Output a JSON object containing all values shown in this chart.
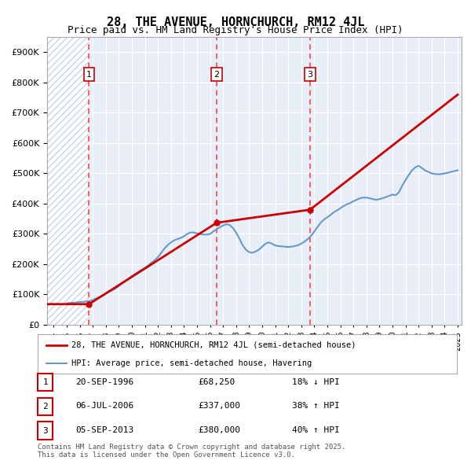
{
  "title": "28, THE AVENUE, HORNCHURCH, RM12 4JL",
  "subtitle": "Price paid vs. HM Land Registry's House Price Index (HPI)",
  "ylabel": "",
  "ylim": [
    0,
    950000
  ],
  "yticks": [
    0,
    100000,
    200000,
    300000,
    400000,
    500000,
    600000,
    700000,
    800000,
    900000
  ],
  "ytick_labels": [
    "£0",
    "£100K",
    "£200K",
    "£300K",
    "£400K",
    "£500K",
    "£600K",
    "£700K",
    "£800K",
    "£900K"
  ],
  "background_color": "#ffffff",
  "plot_bg_color": "#e8eef8",
  "grid_color": "#ffffff",
  "hatch_color": "#c8d4e8",
  "sale_color": "#cc0000",
  "hpi_color": "#6699cc",
  "vline_color": "#ff4444",
  "transactions": [
    {
      "date": 1996.72,
      "price": 68250,
      "label": "1"
    },
    {
      "date": 2006.51,
      "price": 337000,
      "label": "2"
    },
    {
      "date": 2013.67,
      "price": 380000,
      "label": "3"
    }
  ],
  "legend_sale_label": "28, THE AVENUE, HORNCHURCH, RM12 4JL (semi-detached house)",
  "legend_hpi_label": "HPI: Average price, semi-detached house, Havering",
  "table_rows": [
    {
      "num": "1",
      "date": "20-SEP-1996",
      "price": "£68,250",
      "hpi": "18% ↓ HPI"
    },
    {
      "num": "2",
      "date": "06-JUL-2006",
      "price": "£337,000",
      "hpi": "38% ↑ HPI"
    },
    {
      "num": "3",
      "date": "05-SEP-2013",
      "price": "£380,000",
      "hpi": "40% ↑ HPI"
    }
  ],
  "footer": "Contains HM Land Registry data © Crown copyright and database right 2025.\nThis data is licensed under the Open Government Licence v3.0.",
  "hpi_x": [
    1995.0,
    1995.25,
    1995.5,
    1995.75,
    1996.0,
    1996.25,
    1996.5,
    1996.75,
    1997.0,
    1997.25,
    1997.5,
    1997.75,
    1998.0,
    1998.25,
    1998.5,
    1998.75,
    1999.0,
    1999.25,
    1999.5,
    1999.75,
    2000.0,
    2000.25,
    2000.5,
    2000.75,
    2001.0,
    2001.25,
    2001.5,
    2001.75,
    2002.0,
    2002.25,
    2002.5,
    2002.75,
    2003.0,
    2003.25,
    2003.5,
    2003.75,
    2004.0,
    2004.25,
    2004.5,
    2004.75,
    2005.0,
    2005.25,
    2005.5,
    2005.75,
    2006.0,
    2006.25,
    2006.5,
    2006.75,
    2007.0,
    2007.25,
    2007.5,
    2007.75,
    2008.0,
    2008.25,
    2008.5,
    2008.75,
    2009.0,
    2009.25,
    2009.5,
    2009.75,
    2010.0,
    2010.25,
    2010.5,
    2010.75,
    2011.0,
    2011.25,
    2011.5,
    2011.75,
    2012.0,
    2012.25,
    2012.5,
    2012.75,
    2013.0,
    2013.25,
    2013.5,
    2013.75,
    2014.0,
    2014.25,
    2014.5,
    2014.75,
    2015.0,
    2015.25,
    2015.5,
    2015.75,
    2016.0,
    2016.25,
    2016.5,
    2016.75,
    2017.0,
    2017.25,
    2017.5,
    2017.75,
    2018.0,
    2018.25,
    2018.5,
    2018.75,
    2019.0,
    2019.25,
    2019.5,
    2019.75,
    2020.0,
    2020.25,
    2020.5,
    2020.75,
    2021.0,
    2021.25,
    2021.5,
    2021.75,
    2022.0,
    2022.25,
    2022.5,
    2022.75,
    2023.0,
    2023.25,
    2023.5,
    2023.75,
    2024.0,
    2024.25,
    2024.5,
    2024.75,
    2025.0
  ],
  "hpi_y": [
    71000,
    72000,
    73000,
    74000,
    75000,
    76000,
    77000,
    78000,
    82000,
    87000,
    92000,
    97000,
    103000,
    109000,
    114000,
    120000,
    128000,
    137000,
    145000,
    153000,
    161000,
    168000,
    175000,
    182000,
    188000,
    196000,
    205000,
    213000,
    223000,
    237000,
    252000,
    263000,
    272000,
    279000,
    283000,
    287000,
    292000,
    300000,
    305000,
    305000,
    302000,
    300000,
    298000,
    298000,
    300000,
    308000,
    315000,
    322000,
    328000,
    332000,
    330000,
    320000,
    305000,
    285000,
    263000,
    248000,
    240000,
    238000,
    242000,
    248000,
    258000,
    268000,
    272000,
    268000,
    262000,
    260000,
    259000,
    258000,
    257000,
    258000,
    260000,
    263000,
    268000,
    275000,
    283000,
    294000,
    308000,
    323000,
    338000,
    348000,
    355000,
    363000,
    372000,
    378000,
    385000,
    392000,
    398000,
    402000,
    408000,
    413000,
    418000,
    420000,
    420000,
    418000,
    415000,
    413000,
    415000,
    418000,
    422000,
    426000,
    430000,
    428000,
    438000,
    460000,
    478000,
    495000,
    510000,
    520000,
    525000,
    518000,
    510000,
    505000,
    500000,
    498000,
    497000,
    498000,
    500000,
    502000,
    505000,
    508000,
    510000
  ],
  "sale_x": [
    1993.5,
    1996.72,
    1996.72,
    2006.51,
    2006.51,
    2013.67,
    2013.67,
    2025.0
  ],
  "sale_y": [
    68250,
    68250,
    68250,
    337000,
    337000,
    380000,
    380000,
    760000
  ],
  "xlim": [
    1993.5,
    2025.3
  ],
  "xticks": [
    1994,
    1995,
    1996,
    1997,
    1998,
    1999,
    2000,
    2001,
    2002,
    2003,
    2004,
    2005,
    2006,
    2007,
    2008,
    2009,
    2010,
    2011,
    2012,
    2013,
    2014,
    2015,
    2016,
    2017,
    2018,
    2019,
    2020,
    2021,
    2022,
    2023,
    2024,
    2025
  ]
}
